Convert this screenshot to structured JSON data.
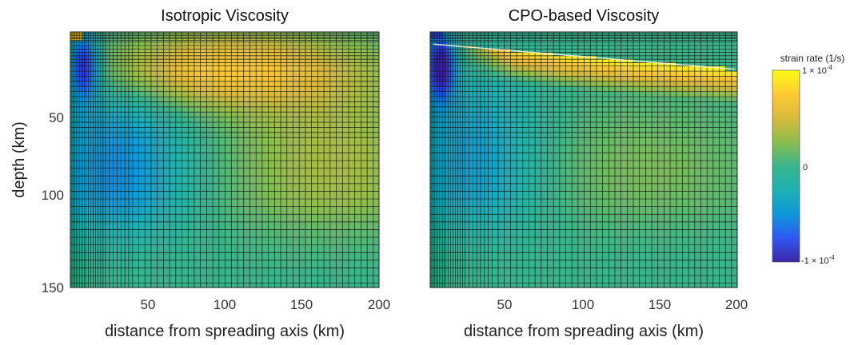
{
  "chart_data": [
    {
      "type": "heatmap",
      "title": "Isotropic Viscosity",
      "xlabel": "distance from spreading axis (km)",
      "ylabel": "depth (km)",
      "xlim": [
        0,
        200
      ],
      "ylim": [
        150,
        0
      ],
      "xticks": [
        "50",
        "100",
        "150",
        "200"
      ],
      "yticks": [
        "50",
        "100",
        "150"
      ],
      "mesh": "non-uniform grid, refined toward the spreading axis and the surface",
      "field": "strain rate (1/s)",
      "features": [
        {
          "description": "minimum strain rate",
          "x": 10,
          "y": 20,
          "value": -0.0001
        },
        {
          "description": "maximum strain rate",
          "x": 60,
          "y": 20,
          "value": 6e-05
        }
      ]
    },
    {
      "type": "heatmap",
      "title": "CPO-based Viscosity",
      "xlabel": "distance from spreading axis (km)",
      "xlim": [
        0,
        200
      ],
      "ylim": [
        150,
        0
      ],
      "xticks": [
        "50",
        "100",
        "150",
        "200"
      ],
      "mesh": "non-uniform grid, refined toward the spreading axis and the surface",
      "field": "strain rate (1/s)",
      "features": [
        {
          "description": "minimum strain rate",
          "x": 8,
          "y": 15,
          "value": -0.0001
        },
        {
          "description": "maximum strain rate",
          "x": 100,
          "y": 35,
          "value": 0.0001
        }
      ]
    }
  ],
  "colorbar": {
    "title": "strain rate (1/s)",
    "min_label": "-1 × 10",
    "min_exp": "-4",
    "mid_label": "0",
    "max_label": "1 × 10",
    "max_exp": "-4",
    "range": [
      -0.0001,
      0.0001
    ],
    "colormap": "parula",
    "colors": [
      "#3e26a8",
      "#2f58f2",
      "#0f97da",
      "#1eb0b3",
      "#38b48c",
      "#8bbd4e",
      "#d8b93c",
      "#feca35",
      "#f9fb15"
    ]
  },
  "grid_line_color": "#1a1a1a"
}
